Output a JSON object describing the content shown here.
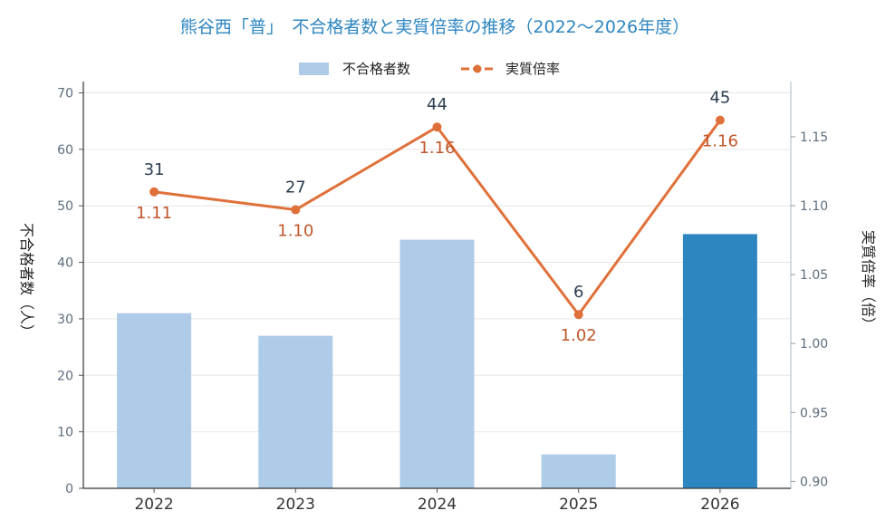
{
  "chart_data": {
    "type": "bar",
    "title": "熊谷西「普」　不合格者数と実質倍率の推移（2022〜2026年度）",
    "categories": [
      "2022",
      "2023",
      "2024",
      "2025",
      "2026"
    ],
    "series": [
      {
        "name": "不合格者数",
        "kind": "bar",
        "axis": "left",
        "values": [
          31,
          27,
          44,
          6,
          45
        ],
        "labels": [
          "31",
          "27",
          "44",
          "6",
          "45"
        ]
      },
      {
        "name": "実質倍率",
        "kind": "line",
        "axis": "right",
        "values": [
          1.11,
          1.097,
          1.157,
          1.021,
          1.162
        ],
        "labels": [
          "1.11",
          "1.10",
          "1.16",
          "1.02",
          "1.16"
        ]
      }
    ],
    "ylabel": "不合格者数（人）",
    "y2label": "実質倍率（倍）",
    "ylim": [
      0,
      72
    ],
    "y2lim": [
      0.895,
      1.19
    ],
    "yticks": [
      "0",
      "10",
      "20",
      "30",
      "40",
      "50",
      "60",
      "70"
    ],
    "y2ticks": [
      "0.90",
      "0.95",
      "1.00",
      "1.05",
      "1.10",
      "1.15"
    ],
    "grid": true,
    "legend_position": "top-center",
    "colors": {
      "bar": "#aecbe7",
      "bar_highlight": "#2e86c1",
      "line": "#e07039",
      "title": "#2e86c1",
      "bar_label": "#2c3e50",
      "line_label": "#c0562a",
      "axis_text": "#5d6d7e"
    },
    "highlight_category": "2026"
  }
}
